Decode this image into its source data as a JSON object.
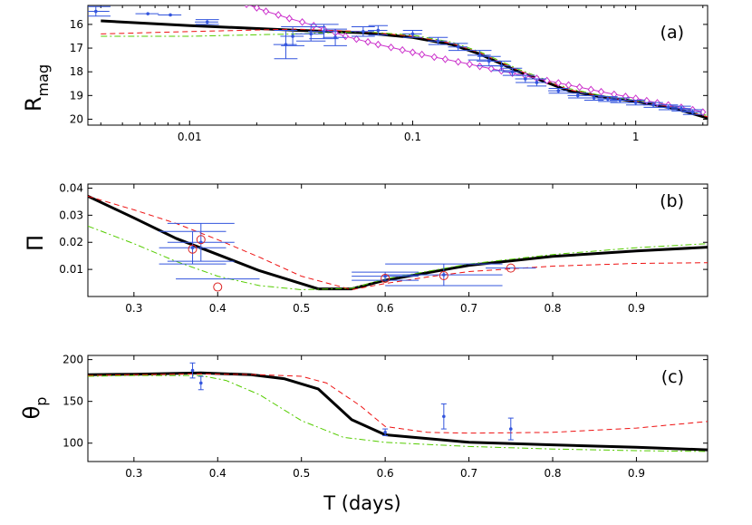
{
  "chart_data": [
    {
      "type": "scatter",
      "panel_label": "(a)",
      "ylabel_main": "R",
      "ylabel_sub": "mag",
      "x_scale": "log",
      "y_inverted": true,
      "xlim": [
        0.0035,
        2.1
      ],
      "ylim": [
        20.25,
        15.2
      ],
      "xticks": [
        0.01,
        0.1,
        1
      ],
      "xtick_labels": [
        "0.01",
        "0.1",
        "1"
      ],
      "yticks": [
        16,
        17,
        18,
        19,
        20
      ],
      "ytick_labels": [
        "16",
        "17",
        "18",
        "19",
        "20"
      ],
      "series": [
        {
          "name": "model-solid",
          "style": "solid-black",
          "x": [
            0.004,
            0.01,
            0.03,
            0.06,
            0.1,
            0.15,
            0.2,
            0.3,
            0.5,
            0.7,
            1.0,
            1.5,
            2.1
          ],
          "y": [
            15.85,
            16.05,
            16.25,
            16.35,
            16.55,
            16.85,
            17.25,
            18.0,
            18.8,
            19.05,
            19.25,
            19.55,
            19.95
          ]
        },
        {
          "name": "model-dashed",
          "style": "dashed-red",
          "x": [
            0.004,
            0.01,
            0.03,
            0.06,
            0.1,
            0.15,
            0.2,
            0.3,
            0.5,
            0.7,
            1.0,
            1.5,
            2.1
          ],
          "y": [
            16.4,
            16.3,
            16.2,
            16.3,
            16.5,
            16.8,
            17.2,
            17.95,
            18.75,
            19.05,
            19.25,
            19.5,
            19.9
          ]
        },
        {
          "name": "model-dashdot",
          "style": "dashdot-green",
          "x": [
            0.004,
            0.01,
            0.03,
            0.06,
            0.1,
            0.15,
            0.2,
            0.3,
            0.5,
            0.7,
            1.0,
            1.5,
            2.1
          ],
          "y": [
            16.5,
            16.5,
            16.4,
            16.3,
            16.45,
            16.75,
            17.15,
            17.9,
            18.7,
            19.0,
            19.2,
            19.45,
            19.85
          ]
        },
        {
          "name": "diamond-model",
          "style": "diamond-magenta",
          "x": [
            0.016,
            0.018,
            0.02,
            0.022,
            0.025,
            0.028,
            0.032,
            0.036,
            0.04,
            0.045,
            0.05,
            0.056,
            0.063,
            0.07,
            0.08,
            0.09,
            0.1,
            0.11,
            0.125,
            0.14,
            0.16,
            0.18,
            0.2,
            0.225,
            0.25,
            0.28,
            0.32,
            0.36,
            0.4,
            0.45,
            0.5,
            0.56,
            0.63,
            0.7,
            0.8,
            0.9,
            1.0,
            1.12,
            1.25,
            1.4,
            1.6,
            1.8,
            2.0
          ],
          "y": [
            15.0,
            15.15,
            15.3,
            15.45,
            15.6,
            15.75,
            15.9,
            16.05,
            16.2,
            16.35,
            16.5,
            16.62,
            16.74,
            16.85,
            16.97,
            17.08,
            17.18,
            17.27,
            17.38,
            17.47,
            17.58,
            17.68,
            17.77,
            17.87,
            17.96,
            18.06,
            18.17,
            18.28,
            18.37,
            18.47,
            18.56,
            18.65,
            18.75,
            18.84,
            18.95,
            19.04,
            19.12,
            19.22,
            19.31,
            19.4,
            19.5,
            19.6,
            19.7
          ]
        },
        {
          "name": "observations",
          "style": "errorbar-blue",
          "x": [
            0.0038,
            0.0065,
            0.0082,
            0.012,
            0.027,
            0.029,
            0.035,
            0.04,
            0.045,
            0.06,
            0.07,
            0.1,
            0.13,
            0.16,
            0.2,
            0.22,
            0.25,
            0.28,
            0.32,
            0.36,
            0.45,
            0.55,
            0.65,
            0.75,
            0.85,
            1.0,
            1.2,
            1.4,
            1.6,
            1.8
          ],
          "y": [
            15.45,
            15.55,
            15.6,
            15.9,
            16.85,
            16.5,
            16.4,
            16.3,
            16.55,
            16.3,
            16.25,
            16.4,
            16.7,
            16.95,
            17.3,
            17.55,
            17.75,
            18.0,
            18.3,
            18.45,
            18.8,
            19.0,
            19.1,
            19.15,
            19.2,
            19.3,
            19.4,
            19.5,
            19.55,
            19.7
          ],
          "yerr": [
            0.2,
            0,
            0,
            0.1,
            0.6,
            0.4,
            0.3,
            0.3,
            0.35,
            0.2,
            0.2,
            0.15,
            0.15,
            0.15,
            0.2,
            0.2,
            0.2,
            0.15,
            0.15,
            0.15,
            0.1,
            0.1,
            0.1,
            0.1,
            0.1,
            0.1,
            0.1,
            0.1,
            0.1,
            0.1
          ],
          "xerr_frac": [
            0.15,
            0.12,
            0.12,
            0.12,
            0.12,
            0.12,
            0.15,
            0.15,
            0.12,
            0.12,
            0.1,
            0.1,
            0.1,
            0.1,
            0.12,
            0.12,
            0.1,
            0.1,
            0.1,
            0.1,
            0.1,
            0.1,
            0.1,
            0.1,
            0.1,
            0.1,
            0.1,
            0.1,
            0.1,
            0.1
          ]
        }
      ]
    },
    {
      "type": "scatter",
      "panel_label": "(b)",
      "ylabel_main": "Π",
      "ylabel_sub": "",
      "x_scale": "linear",
      "y_inverted": false,
      "xlim": [
        0.245,
        0.985
      ],
      "ylim": [
        0.0,
        0.0415
      ],
      "xticks": [
        0.3,
        0.4,
        0.5,
        0.6,
        0.7,
        0.8,
        0.9
      ],
      "xtick_labels": [
        "0.3",
        "0.4",
        "0.5",
        "0.6",
        "0.7",
        "0.8",
        "0.9"
      ],
      "yticks": [
        0.01,
        0.02,
        0.03,
        0.04
      ],
      "ytick_labels": [
        "0.01",
        "0.02",
        "0.03",
        "0.04"
      ],
      "series": [
        {
          "name": "model-solid",
          "style": "solid-black",
          "x": [
            0.245,
            0.3,
            0.35,
            0.4,
            0.45,
            0.52,
            0.56,
            0.6,
            0.7,
            0.8,
            0.9,
            0.985
          ],
          "y": [
            0.037,
            0.029,
            0.0215,
            0.0155,
            0.0095,
            0.0028,
            0.0028,
            0.006,
            0.0115,
            0.0148,
            0.0168,
            0.0182
          ]
        },
        {
          "name": "model-dashed",
          "style": "dashed-red",
          "x": [
            0.245,
            0.3,
            0.35,
            0.4,
            0.45,
            0.5,
            0.56,
            0.6,
            0.65,
            0.7,
            0.8,
            0.9,
            0.985
          ],
          "y": [
            0.037,
            0.032,
            0.027,
            0.021,
            0.0145,
            0.0075,
            0.0025,
            0.0048,
            0.0072,
            0.0092,
            0.0112,
            0.0122,
            0.0125
          ]
        },
        {
          "name": "model-dashdot",
          "style": "dashdot-green",
          "x": [
            0.245,
            0.3,
            0.35,
            0.4,
            0.45,
            0.5,
            0.56,
            0.6,
            0.7,
            0.8,
            0.9,
            0.985
          ],
          "y": [
            0.026,
            0.0195,
            0.013,
            0.0075,
            0.004,
            0.0025,
            0.003,
            0.0065,
            0.012,
            0.0155,
            0.018,
            0.0195
          ]
        },
        {
          "name": "observations",
          "style": "errorbar-blue",
          "x": [
            0.37,
            0.38,
            0.6,
            0.67
          ],
          "y": [
            0.018,
            0.02,
            0.0075,
            0.008
          ],
          "xerr": [
            0.04,
            0.04,
            0.04,
            0.07
          ],
          "yerr": [
            0.006,
            0.007,
            0.0015,
            0.004
          ]
        },
        {
          "name": "observations-fit",
          "style": "horizontal-blue",
          "x": [
            0.4,
            0.75
          ],
          "y": [
            0.0065,
            0.0105
          ],
          "xerr": [
            0.05,
            0.03
          ]
        },
        {
          "name": "circle-markers",
          "style": "open-circle-red",
          "x": [
            0.37,
            0.38,
            0.4,
            0.6,
            0.67,
            0.75
          ],
          "y": [
            0.0175,
            0.021,
            0.0035,
            0.0067,
            0.0077,
            0.0105
          ]
        }
      ]
    },
    {
      "type": "scatter",
      "panel_label": "(c)",
      "ylabel_main": "θ",
      "ylabel_sub": "p",
      "x_scale": "linear",
      "y_inverted": false,
      "xlim": [
        0.245,
        0.985
      ],
      "ylim": [
        78,
        205
      ],
      "xticks": [
        0.3,
        0.4,
        0.5,
        0.6,
        0.7,
        0.8,
        0.9
      ],
      "xtick_labels": [
        "0.3",
        "0.4",
        "0.5",
        "0.6",
        "0.7",
        "0.8",
        "0.9"
      ],
      "yticks": [
        100,
        150,
        200
      ],
      "ytick_labels": [
        "100",
        "150",
        "200"
      ],
      "xlabel": "T (days)",
      "series": [
        {
          "name": "model-solid",
          "style": "solid-black",
          "x": [
            0.245,
            0.3,
            0.38,
            0.44,
            0.48,
            0.52,
            0.56,
            0.6,
            0.7,
            0.8,
            0.9,
            0.985
          ],
          "y": [
            182,
            182.5,
            184,
            182,
            177,
            165,
            128,
            110,
            101,
            98,
            95,
            92
          ]
        },
        {
          "name": "model-dashed",
          "style": "dashed-red",
          "x": [
            0.245,
            0.3,
            0.38,
            0.45,
            0.5,
            0.53,
            0.57,
            0.6,
            0.65,
            0.7,
            0.8,
            0.9,
            0.985
          ],
          "y": [
            181,
            182,
            183,
            182,
            180,
            172,
            145,
            120,
            113,
            112,
            113,
            118,
            126
          ]
        },
        {
          "name": "model-dashdot",
          "style": "dashdot-green",
          "x": [
            0.245,
            0.3,
            0.38,
            0.41,
            0.45,
            0.5,
            0.55,
            0.6,
            0.7,
            0.8,
            0.9,
            0.985
          ],
          "y": [
            180,
            181,
            181,
            175,
            158,
            127,
            107,
            101,
            96,
            93,
            91,
            90
          ]
        },
        {
          "name": "observations",
          "style": "errorbar-blue",
          "x": [
            0.37,
            0.38,
            0.6,
            0.67,
            0.75
          ],
          "y": [
            187,
            172,
            113,
            132,
            117
          ],
          "yerr": [
            9,
            8,
            4,
            15,
            13
          ]
        }
      ]
    }
  ]
}
